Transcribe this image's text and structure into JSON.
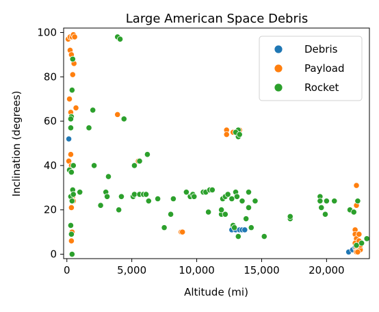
{
  "chart_data": {
    "type": "scatter",
    "title": "Large American Space Debris",
    "xlabel": "Altitude (mi)",
    "ylabel": "Inclination (degrees)",
    "xlim": [
      -250,
      23300
    ],
    "ylim": [
      -2,
      102
    ],
    "xticks": [
      0,
      5000,
      10000,
      15000,
      20000
    ],
    "xtick_labels": [
      "0",
      "5,000",
      "10,000",
      "15,000",
      "20,000"
    ],
    "yticks": [
      0,
      20,
      40,
      60,
      80,
      100
    ],
    "ytick_labels": [
      "0",
      "20",
      "40",
      "60",
      "80",
      "100"
    ],
    "grid": false,
    "legend_position": "top-right",
    "series": [
      {
        "name": "Debris",
        "color": "#1f77b4",
        "points": [
          [
            150,
            52
          ],
          [
            12700,
            11
          ],
          [
            13000,
            11
          ],
          [
            13300,
            11
          ],
          [
            13500,
            11
          ],
          [
            13700,
            11
          ],
          [
            21700,
            1
          ],
          [
            22000,
            2
          ],
          [
            22200,
            3
          ],
          [
            22300,
            2
          ],
          [
            22400,
            3
          ],
          [
            22500,
            2
          ],
          [
            22600,
            3
          ]
        ]
      },
      {
        "name": "Payload",
        "color": "#ff7f0e",
        "points": [
          [
            100,
            97
          ],
          [
            250,
            98
          ],
          [
            400,
            98
          ],
          [
            500,
            99
          ],
          [
            600,
            98
          ],
          [
            250,
            92
          ],
          [
            350,
            90
          ],
          [
            450,
            88
          ],
          [
            550,
            86
          ],
          [
            450,
            81
          ],
          [
            200,
            70
          ],
          [
            700,
            66
          ],
          [
            300,
            64
          ],
          [
            3900,
            63
          ],
          [
            300,
            45
          ],
          [
            150,
            42
          ],
          [
            350,
            40
          ],
          [
            450,
            26
          ],
          [
            500,
            24
          ],
          [
            350,
            21
          ],
          [
            400,
            10
          ],
          [
            350,
            6
          ],
          [
            5500,
            42
          ],
          [
            8800,
            10
          ],
          [
            8900,
            10
          ],
          [
            12300,
            56
          ],
          [
            12300,
            54
          ],
          [
            12800,
            55
          ],
          [
            13200,
            54
          ],
          [
            13300,
            56
          ],
          [
            22300,
            31
          ],
          [
            22300,
            22
          ],
          [
            22200,
            11
          ],
          [
            22200,
            9
          ],
          [
            22300,
            7
          ],
          [
            22200,
            5
          ],
          [
            22300,
            3
          ],
          [
            22400,
            2
          ],
          [
            22500,
            3
          ],
          [
            22600,
            2
          ],
          [
            22500,
            6
          ],
          [
            22300,
            1
          ],
          [
            22500,
            9
          ],
          [
            22600,
            4
          ],
          [
            22400,
            1
          ]
        ]
      },
      {
        "name": "Rocket",
        "color": "#2ca02c",
        "points": [
          [
            450,
            88
          ],
          [
            400,
            74
          ],
          [
            350,
            62
          ],
          [
            300,
            61
          ],
          [
            300,
            57
          ],
          [
            200,
            38
          ],
          [
            350,
            37
          ],
          [
            300,
            26
          ],
          [
            400,
            24
          ],
          [
            450,
            29
          ],
          [
            500,
            27
          ],
          [
            300,
            13
          ],
          [
            350,
            9
          ],
          [
            400,
            0
          ],
          [
            500,
            40
          ],
          [
            1000,
            28
          ],
          [
            1700,
            57
          ],
          [
            2000,
            65
          ],
          [
            2100,
            40
          ],
          [
            2600,
            22
          ],
          [
            3000,
            28
          ],
          [
            3100,
            26
          ],
          [
            3200,
            35
          ],
          [
            3900,
            98
          ],
          [
            4100,
            97
          ],
          [
            4000,
            20
          ],
          [
            4200,
            26
          ],
          [
            4400,
            61
          ],
          [
            5100,
            26
          ],
          [
            5200,
            27
          ],
          [
            5200,
            40
          ],
          [
            5600,
            27
          ],
          [
            5600,
            42
          ],
          [
            5900,
            27
          ],
          [
            6100,
            27
          ],
          [
            6200,
            45
          ],
          [
            6300,
            24
          ],
          [
            7000,
            25
          ],
          [
            7500,
            12
          ],
          [
            8000,
            18
          ],
          [
            8200,
            25
          ],
          [
            9200,
            28
          ],
          [
            9500,
            26
          ],
          [
            9700,
            27
          ],
          [
            9800,
            26
          ],
          [
            10500,
            28
          ],
          [
            10700,
            28
          ],
          [
            10900,
            19
          ],
          [
            11000,
            29
          ],
          [
            11200,
            29
          ],
          [
            11900,
            18
          ],
          [
            11900,
            20
          ],
          [
            12000,
            25
          ],
          [
            12200,
            18
          ],
          [
            12200,
            26
          ],
          [
            12400,
            27
          ],
          [
            12700,
            25
          ],
          [
            12800,
            13
          ],
          [
            12900,
            12
          ],
          [
            13000,
            28
          ],
          [
            13100,
            26
          ],
          [
            13200,
            8
          ],
          [
            13200,
            56
          ],
          [
            13200,
            53
          ],
          [
            13000,
            55
          ],
          [
            13300,
            54
          ],
          [
            13500,
            24
          ],
          [
            13800,
            16
          ],
          [
            14000,
            21
          ],
          [
            14000,
            28
          ],
          [
            14200,
            12
          ],
          [
            14500,
            24
          ],
          [
            15200,
            8
          ],
          [
            17200,
            16
          ],
          [
            17200,
            17
          ],
          [
            19500,
            26
          ],
          [
            19500,
            24
          ],
          [
            19600,
            21
          ],
          [
            19900,
            18
          ],
          [
            20000,
            24
          ],
          [
            20600,
            24
          ],
          [
            21800,
            20
          ],
          [
            22100,
            19
          ],
          [
            22400,
            24
          ],
          [
            22700,
            5
          ],
          [
            23100,
            7
          ],
          [
            22300,
            4
          ]
        ]
      }
    ]
  }
}
